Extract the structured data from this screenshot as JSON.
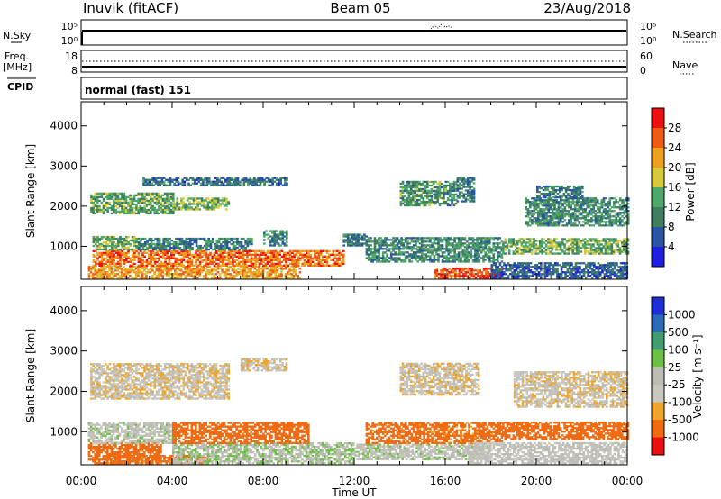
{
  "header": {
    "station": "Inuvik (fitACF)",
    "beam": "Beam 05",
    "date": "23/Aug/2018"
  },
  "top_panels": {
    "nsky": {
      "label": "N.Sky",
      "tick_top": "10^5",
      "tick_bottom": "10^0",
      "right_label": "N.Search",
      "right_tick_top": "10^5",
      "right_tick_bottom": "10^0"
    },
    "freq": {
      "label_line1": "Freq.",
      "label_line2": "[MHz]",
      "tick_top": "18",
      "tick_bottom": "8",
      "right_label": "Nave",
      "right_tick_top": "60",
      "right_tick_bottom": "0"
    },
    "cpid": {
      "label": "CPID",
      "value": "normal (fast) 151"
    }
  },
  "colors": {
    "power": [
      "#1f1fe0",
      "#2a55a5",
      "#3f7f5f",
      "#4ea86a",
      "#d6c93a",
      "#f0a020",
      "#ee5b15",
      "#ee1010"
    ],
    "velocity": [
      "#e81010",
      "#ef6a10",
      "#f0a52a",
      "#c8c8c0",
      "#bdbdb6",
      "#6cc046",
      "#3f9d70",
      "#2a6ab8",
      "#1f2fd8"
    ]
  },
  "chart_data": [
    {
      "type": "heatmap",
      "title": "",
      "xlabel": "",
      "ylabel": "Slant Range [km]",
      "x_ticks": [
        "00:00",
        "04:00",
        "08:00",
        "12:00",
        "16:00",
        "20:00",
        "00:00"
      ],
      "y_ticks": [
        "1000",
        "2000",
        "3000",
        "4000"
      ],
      "xlim": [
        0,
        24
      ],
      "ylim": [
        180,
        4600
      ],
      "colorbar": {
        "label": "Power [dB]",
        "ticks": [
          "4",
          "8",
          "12",
          "16",
          "20",
          "24",
          "28"
        ],
        "range": [
          0,
          32
        ]
      },
      "regions": [
        {
          "t0": 0.3,
          "t1": 9.6,
          "r0": 200,
          "r1": 500,
          "v": 22
        },
        {
          "t0": 0.5,
          "t1": 11.5,
          "r0": 500,
          "r1": 900,
          "v": 25
        },
        {
          "t0": 0.5,
          "t1": 2.5,
          "r0": 900,
          "r1": 1250,
          "v": 14
        },
        {
          "t0": 2.5,
          "t1": 7.5,
          "r0": 900,
          "r1": 1200,
          "v": 10
        },
        {
          "t0": 0.4,
          "t1": 4.0,
          "r0": 1800,
          "r1": 2300,
          "v": 13
        },
        {
          "t0": 4.0,
          "t1": 6.5,
          "r0": 1900,
          "r1": 2200,
          "v": 15
        },
        {
          "t0": 2.7,
          "t1": 9.0,
          "r0": 2500,
          "r1": 2700,
          "v": 8
        },
        {
          "t0": 8.0,
          "t1": 9.0,
          "r0": 1000,
          "r1": 1400,
          "v": 11
        },
        {
          "t0": 11.5,
          "t1": 12.5,
          "r0": 1000,
          "r1": 1300,
          "v": 9
        },
        {
          "t0": 12.5,
          "t1": 18.5,
          "r0": 600,
          "r1": 1200,
          "v": 11
        },
        {
          "t0": 14.0,
          "t1": 16.5,
          "r0": 2000,
          "r1": 2600,
          "v": 12
        },
        {
          "t0": 16.5,
          "t1": 17.3,
          "r0": 2100,
          "r1": 2700,
          "v": 9
        },
        {
          "t0": 15.5,
          "t1": 18.5,
          "r0": 200,
          "r1": 450,
          "v": 27
        },
        {
          "t0": 18.5,
          "t1": 24.0,
          "r0": 800,
          "r1": 1200,
          "v": 14
        },
        {
          "t0": 19.5,
          "t1": 24.0,
          "r0": 1500,
          "r1": 2200,
          "v": 11
        },
        {
          "t0": 20.0,
          "t1": 22.0,
          "r0": 2200,
          "r1": 2500,
          "v": 9
        },
        {
          "t0": 18.0,
          "t1": 24.0,
          "r0": 200,
          "r1": 600,
          "v": 7
        }
      ]
    },
    {
      "type": "heatmap",
      "title": "",
      "xlabel": "Time UT",
      "ylabel": "Slant Range [km]",
      "x_ticks": [
        "00:00",
        "04:00",
        "08:00",
        "12:00",
        "16:00",
        "20:00",
        "00:00"
      ],
      "y_ticks": [
        "1000",
        "2000",
        "3000",
        "4000"
      ],
      "xlim": [
        0,
        24
      ],
      "ylim": [
        180,
        4600
      ],
      "colorbar": {
        "label": "Velocity [m s^-1]",
        "ticks": [
          "1000",
          "500",
          "100",
          "25",
          "-25",
          "-100",
          "-500",
          "-1000"
        ],
        "bounds": [
          -1200,
          -1000,
          -500,
          -100,
          -25,
          25,
          100,
          500,
          1000,
          1200
        ]
      },
      "regions": [
        {
          "t0": 0.3,
          "t1": 3.5,
          "r0": 200,
          "r1": 700,
          "v": -200
        },
        {
          "t0": 1.0,
          "t1": 5.5,
          "r0": 200,
          "r1": 400,
          "v": -150
        },
        {
          "t0": 0.3,
          "t1": 4.0,
          "r0": 700,
          "r1": 1200,
          "v": 60
        },
        {
          "t0": 4.0,
          "t1": 12.0,
          "r0": 200,
          "r1": 700,
          "v": 80
        },
        {
          "t0": 4.0,
          "t1": 10.0,
          "r0": 700,
          "r1": 1200,
          "v": -300
        },
        {
          "t0": 0.4,
          "t1": 6.5,
          "r0": 1800,
          "r1": 2700,
          "v": 0
        },
        {
          "t0": 7.0,
          "t1": 9.0,
          "r0": 2500,
          "r1": 2800,
          "v": 0
        },
        {
          "t0": 12.0,
          "t1": 18.0,
          "r0": 300,
          "r1": 700,
          "v": 60
        },
        {
          "t0": 12.5,
          "t1": 18.5,
          "r0": 700,
          "r1": 1200,
          "v": -150
        },
        {
          "t0": 14.0,
          "t1": 17.5,
          "r0": 1900,
          "r1": 2700,
          "v": 0
        },
        {
          "t0": 18.5,
          "t1": 24.0,
          "r0": 800,
          "r1": 1250,
          "v": -300
        },
        {
          "t0": 19.0,
          "t1": 24.0,
          "r0": 1600,
          "r1": 2500,
          "v": 0
        },
        {
          "t0": 17.0,
          "t1": 24.0,
          "r0": 200,
          "r1": 700,
          "v": 40
        }
      ]
    }
  ]
}
